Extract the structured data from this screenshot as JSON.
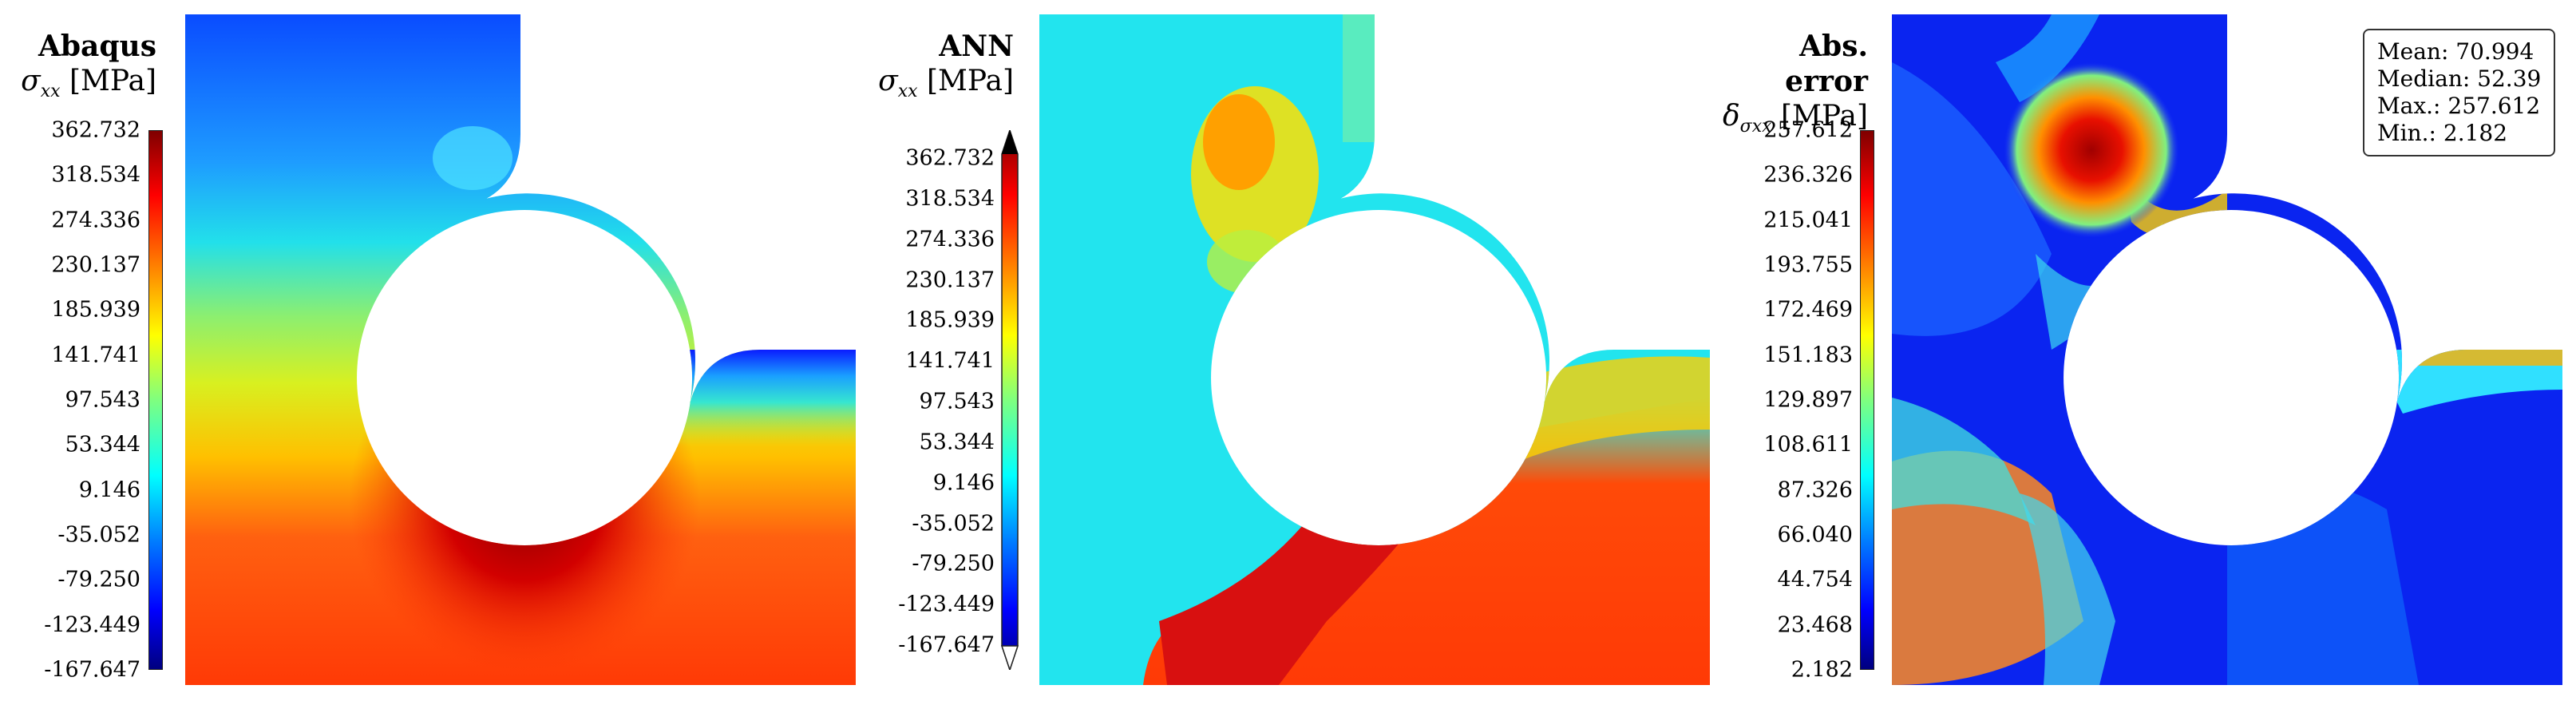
{
  "panels": [
    {
      "id": "abaqus",
      "title": "Abaqus",
      "symbol": "σ",
      "subscript": "xx",
      "unit": "[MPa]",
      "ticks": [
        "362.732",
        "318.534",
        "274.336",
        "230.137",
        "185.939",
        "141.741",
        "97.543",
        "53.344",
        "9.146",
        "-35.052",
        "-79.250",
        "-123.449",
        "-167.647"
      ]
    },
    {
      "id": "ann",
      "title": "ANN",
      "symbol": "σ",
      "subscript": "xx",
      "unit": "[MPa]",
      "ticks": [
        "362.732",
        "318.534",
        "274.336",
        "230.137",
        "185.939",
        "141.741",
        "97.543",
        "53.344",
        "9.146",
        "-35.052",
        "-79.250",
        "-123.449",
        "-167.647"
      ]
    },
    {
      "id": "error",
      "title": "Abs. error",
      "symbol": "δ",
      "subscript": "σxx",
      "unit": "[MPa]",
      "ticks": [
        "257.612",
        "236.326",
        "215.041",
        "193.755",
        "172.469",
        "151.183",
        "129.897",
        "108.611",
        "87.326",
        "66.040",
        "44.754",
        "23.468",
        "2.182"
      ]
    }
  ],
  "stats": {
    "mean": "Mean: 70.994",
    "median": "Median: 52.39",
    "max": "Max.: 257.612",
    "min": "Min.: 2.182"
  },
  "colors": {
    "jet": [
      "#00007f",
      "#0000ff",
      "#007fff",
      "#00ffff",
      "#7fff7f",
      "#ffff00",
      "#ff7f00",
      "#ff0000",
      "#7f0000"
    ]
  }
}
